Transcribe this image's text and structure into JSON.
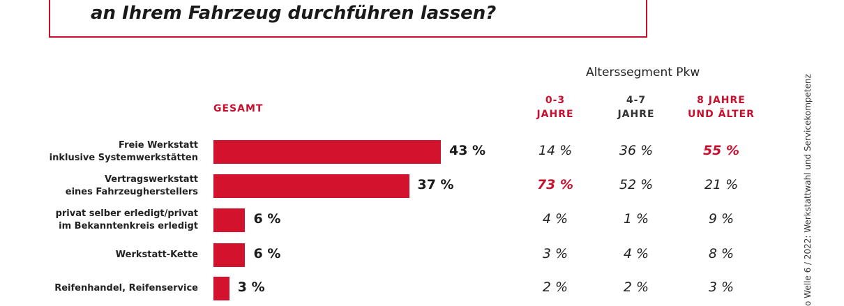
{
  "title": "an Ihrem Fahrzeug durchführen lassen?",
  "segment_header": "Alterssegment Pkw",
  "gesamt_label": "GESAMT",
  "columns": [
    {
      "line1": "0-3",
      "line2": "JAHRE",
      "color": "#c8102e"
    },
    {
      "line1": "4-7",
      "line2": "JAHRE",
      "color": "#333333"
    },
    {
      "line1": "8 JAHRE",
      "line2": "UND ÄLTER",
      "color": "#c8102e"
    }
  ],
  "side_note": "o Welle 6 / 2022: Werkstattwahl und Servicekompetenz",
  "accent_color": "#d3132d",
  "chart_data": {
    "type": "bar",
    "orientation": "horizontal",
    "categories": [
      [
        "Freie Werkstatt",
        "inklusive Systemwerkstätten"
      ],
      [
        "Vertragswerkstatt",
        "eines Fahrzeugherstellers"
      ],
      [
        "privat selber erledigt/privat",
        "im Bekanntenkreis erledigt"
      ],
      [
        "Werkstatt-Kette"
      ],
      [
        "Reifenhandel, Reifenservice"
      ]
    ],
    "values": [
      43,
      37,
      6,
      6,
      3
    ],
    "value_labels": [
      "43 %",
      "37 %",
      "6 %",
      "6 %",
      "3 %"
    ],
    "unit": "%",
    "table": [
      {
        "c03": "14 %",
        "c47": "36 %",
        "c8": "55 %",
        "highlight": "c8"
      },
      {
        "c03": "73 %",
        "c47": "52 %",
        "c8": "21 %",
        "highlight": "c03"
      },
      {
        "c03": "4 %",
        "c47": "1 %",
        "c8": "9 %",
        "highlight": ""
      },
      {
        "c03": "3 %",
        "c47": "4 %",
        "c8": "8 %",
        "highlight": ""
      },
      {
        "c03": "2 %",
        "c47": "2 %",
        "c8": "3 %",
        "highlight": ""
      }
    ]
  }
}
